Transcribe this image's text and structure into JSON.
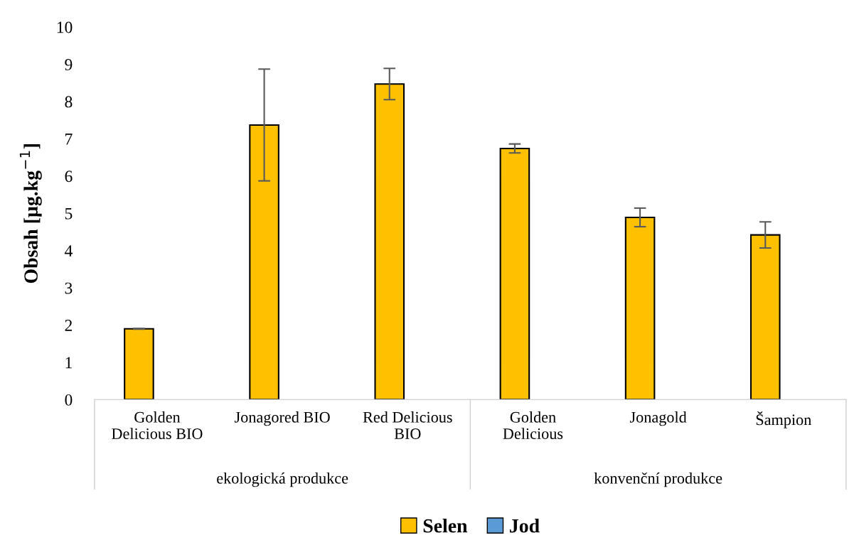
{
  "chart_data": {
    "type": "bar",
    "ylabel": "Obsah [µg.kg$^{−1}$]",
    "categories": [
      "Golden\nDelicious BIO",
      "Jonagored BIO",
      "Red Delicious\nBIO",
      "Golden\nDelicious",
      "Jonagold",
      "Šampion"
    ],
    "series": [
      {
        "name": "Selen",
        "color": "#ffc000",
        "values": [
          1.9,
          7.37,
          8.47,
          6.74,
          4.89,
          4.42
        ],
        "errors": [
          0.01,
          1.5,
          0.42,
          0.12,
          0.25,
          0.35
        ]
      },
      {
        "name": "Jod",
        "color": "#5b9bd5",
        "values": [
          null,
          null,
          null,
          null,
          null,
          null
        ]
      }
    ],
    "annotations": [
      "ekologická produkce",
      "konvenční produkce"
    ],
    "ylim": [
      0,
      10
    ],
    "yticks": [
      0,
      1,
      2,
      3,
      4,
      5,
      6,
      7,
      8,
      9,
      10
    ],
    "grid": false,
    "legend": "bottom"
  }
}
